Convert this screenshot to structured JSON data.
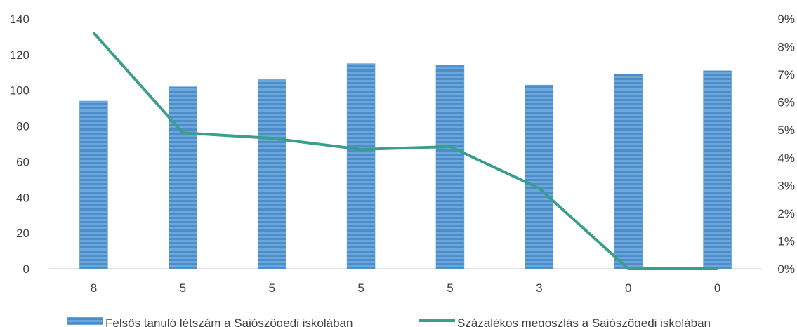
{
  "chart_data": {
    "type": "bar+line",
    "categories": [
      "8",
      "5",
      "5",
      "5",
      "5",
      "3",
      "0",
      "0"
    ],
    "series": [
      {
        "name": "Felsős tanuló létszám a Sajószögedi iskolában",
        "type": "bar",
        "axis": "left",
        "color": "#5b9bd5",
        "values": [
          94,
          102,
          106,
          115,
          114,
          103,
          109,
          111
        ]
      },
      {
        "name": "Százalékos megoszlás a Sajószögedi iskolában",
        "type": "line",
        "axis": "right",
        "color": "#3a9e8c",
        "values": [
          0.085,
          0.049,
          0.047,
          0.043,
          0.044,
          0.029,
          0.0,
          0.0
        ]
      }
    ],
    "left_axis": {
      "min": 0,
      "max": 140,
      "step": 20,
      "tick_labels": [
        "0",
        "20",
        "40",
        "60",
        "80",
        "100",
        "120",
        "140"
      ]
    },
    "right_axis": {
      "min": 0,
      "max": 0.09,
      "step": 0.01,
      "tick_labels": [
        "0%",
        "1%",
        "2%",
        "3%",
        "4%",
        "5%",
        "6%",
        "7%",
        "8%",
        "9%"
      ]
    },
    "legend_position": "bottom",
    "grid": false
  }
}
